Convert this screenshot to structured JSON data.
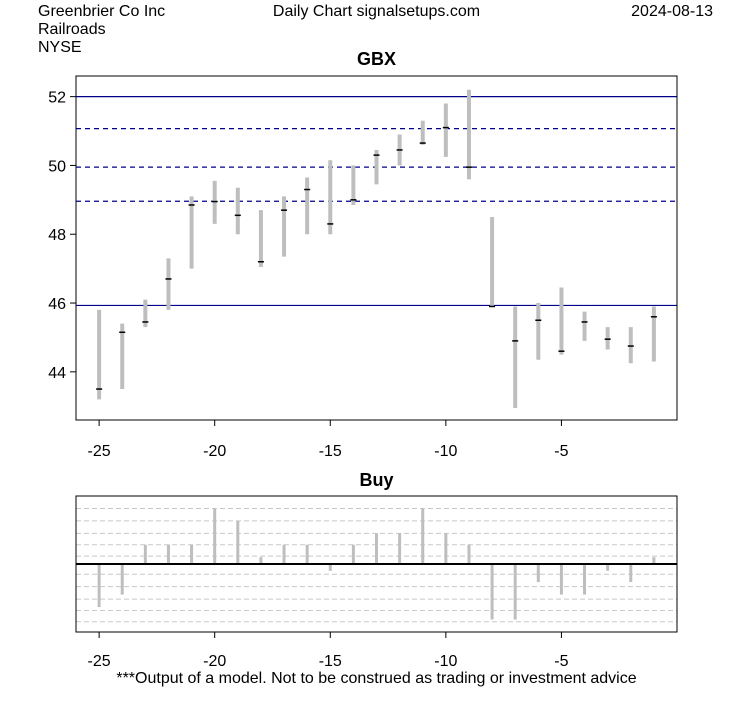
{
  "header": {
    "company": "Greenbrier Co Inc",
    "industry": "Railroads",
    "exchange": "NYSE",
    "source": "Daily Chart signalsetups.com",
    "date": "2024-08-13"
  },
  "footer": {
    "disclaimer": "***Output of a model. Not to be construed as trading or investment advice"
  },
  "colors": {
    "bar": "#bebebe",
    "level_line": "#00008b",
    "grid": "#c8c8c8",
    "zero_line": "#000000"
  },
  "chart_data": [
    {
      "type": "ohlc",
      "title": "GBX",
      "xlim": [
        -26,
        0
      ],
      "ylim": [
        42.6,
        52.6
      ],
      "x_ticks": [
        -25,
        -20,
        -15,
        -10,
        -5
      ],
      "y_ticks": [
        44,
        46,
        48,
        50,
        52
      ],
      "solid_levels": [
        52.0,
        45.93
      ],
      "dashed_levels": [
        51.07,
        49.95,
        48.96
      ],
      "bars": [
        {
          "x": -25,
          "low": 43.2,
          "high": 45.8,
          "close": 43.5
        },
        {
          "x": -24,
          "low": 43.5,
          "high": 45.4,
          "close": 45.15
        },
        {
          "x": -23,
          "low": 45.3,
          "high": 46.1,
          "close": 45.45
        },
        {
          "x": -22,
          "low": 45.8,
          "high": 47.3,
          "close": 46.7
        },
        {
          "x": -21,
          "low": 47.0,
          "high": 49.1,
          "close": 48.85
        },
        {
          "x": -20,
          "low": 48.3,
          "high": 49.55,
          "close": 48.95
        },
        {
          "x": -19,
          "low": 48.0,
          "high": 49.35,
          "close": 48.55
        },
        {
          "x": -18,
          "low": 47.05,
          "high": 48.7,
          "close": 47.2
        },
        {
          "x": -17,
          "low": 47.35,
          "high": 49.1,
          "close": 48.7
        },
        {
          "x": -16,
          "low": 48.0,
          "high": 49.65,
          "close": 49.3
        },
        {
          "x": -15,
          "low": 48.0,
          "high": 50.15,
          "close": 48.3
        },
        {
          "x": -14,
          "low": 48.85,
          "high": 50.0,
          "close": 49.0
        },
        {
          "x": -13,
          "low": 49.45,
          "high": 50.45,
          "close": 50.3
        },
        {
          "x": -12,
          "low": 50.0,
          "high": 50.9,
          "close": 50.45
        },
        {
          "x": -11,
          "low": 50.6,
          "high": 51.3,
          "close": 50.65
        },
        {
          "x": -10,
          "low": 50.25,
          "high": 51.8,
          "close": 51.1
        },
        {
          "x": -9,
          "low": 49.6,
          "high": 52.2,
          "close": 49.95
        },
        {
          "x": -8,
          "low": 45.9,
          "high": 48.5,
          "close": 45.9
        },
        {
          "x": -7,
          "low": 42.95,
          "high": 45.9,
          "close": 44.9
        },
        {
          "x": -6,
          "low": 44.35,
          "high": 46.0,
          "close": 45.5
        },
        {
          "x": -5,
          "low": 44.5,
          "high": 46.45,
          "close": 44.6
        },
        {
          "x": -4,
          "low": 44.9,
          "high": 45.75,
          "close": 45.45
        },
        {
          "x": -3,
          "low": 44.65,
          "high": 45.3,
          "close": 44.95
        },
        {
          "x": -2,
          "low": 44.25,
          "high": 45.3,
          "close": 44.75
        },
        {
          "x": -1,
          "low": 44.3,
          "high": 45.9,
          "close": 45.6
        }
      ]
    },
    {
      "type": "bar",
      "title": "Buy",
      "xlim": [
        -26,
        0
      ],
      "ylim": [
        -6.0,
        6.0
      ],
      "x_ticks": [
        -25,
        -20,
        -15,
        -10,
        -5
      ],
      "grid_levels": [
        4.9,
        3.8,
        2.7,
        1.7,
        0.7,
        -0.9,
        -2.0,
        -3.1,
        -4.1,
        -5.1
      ],
      "x": [
        -25,
        -24,
        -23,
        -22,
        -21,
        -20,
        -19,
        -18,
        -17,
        -16,
        -15,
        -14,
        -13,
        -12,
        -11,
        -10,
        -9,
        -8,
        -7,
        -6,
        -5,
        -4,
        -3,
        -2,
        -1
      ],
      "values": [
        -3.8,
        -2.7,
        1.7,
        1.7,
        1.7,
        4.9,
        3.8,
        0.6,
        1.7,
        1.7,
        -0.6,
        1.7,
        2.7,
        2.7,
        4.9,
        2.7,
        1.7,
        -4.9,
        -4.9,
        -1.6,
        -2.7,
        -2.7,
        -0.6,
        -1.6,
        0.6
      ]
    }
  ]
}
